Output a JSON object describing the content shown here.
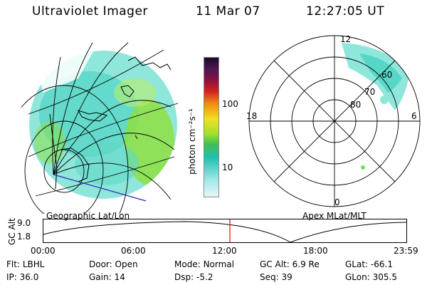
{
  "header": {
    "title": "Ultraviolet Imager",
    "date": "11 Mar 07",
    "time": "12:27:05 UT"
  },
  "left_panel": {
    "caption": "Geographic Lat/Lon"
  },
  "right_panel": {
    "caption": "Apex MLat/MLT",
    "mlt_labels": [
      "12",
      "18",
      "6",
      "0"
    ],
    "mlat_labels": [
      "60",
      "70",
      "80"
    ]
  },
  "colorbar": {
    "unit_label": "photon cm⁻²s⁻¹",
    "ticks": [
      "100",
      "10"
    ],
    "scale": "log"
  },
  "gc_alt_plot": {
    "ylabel": "GC Alt",
    "y_ticks": [
      "9.0",
      "1.8"
    ],
    "x_ticks": [
      "00:00",
      "06:00",
      "12:00",
      "18:00",
      "23:59"
    ],
    "marker_color": "#ff0000"
  },
  "info": {
    "row1": [
      {
        "label": "Flt:",
        "value": "LBHL"
      },
      {
        "label": "Door:",
        "value": "Open"
      },
      {
        "label": "Mode:",
        "value": "Normal"
      },
      {
        "label": "GC Alt:",
        "value": "6.9 Re"
      },
      {
        "label": "GLat:",
        "value": "-66.1"
      }
    ],
    "row2": [
      {
        "label": "IP:",
        "value": "36.0"
      },
      {
        "label": "Gain:",
        "value": "14"
      },
      {
        "label": "Dsp:",
        "value": "-5.2"
      },
      {
        "label": "Seq:",
        "value": "39"
      },
      {
        "label": "GLon:",
        "value": "305.5"
      }
    ]
  },
  "colors": {
    "uv_emission_low": "#7fe3d8",
    "uv_emission_mid": "#3fd0c0",
    "uv_emission_high": "#8fe03a"
  }
}
